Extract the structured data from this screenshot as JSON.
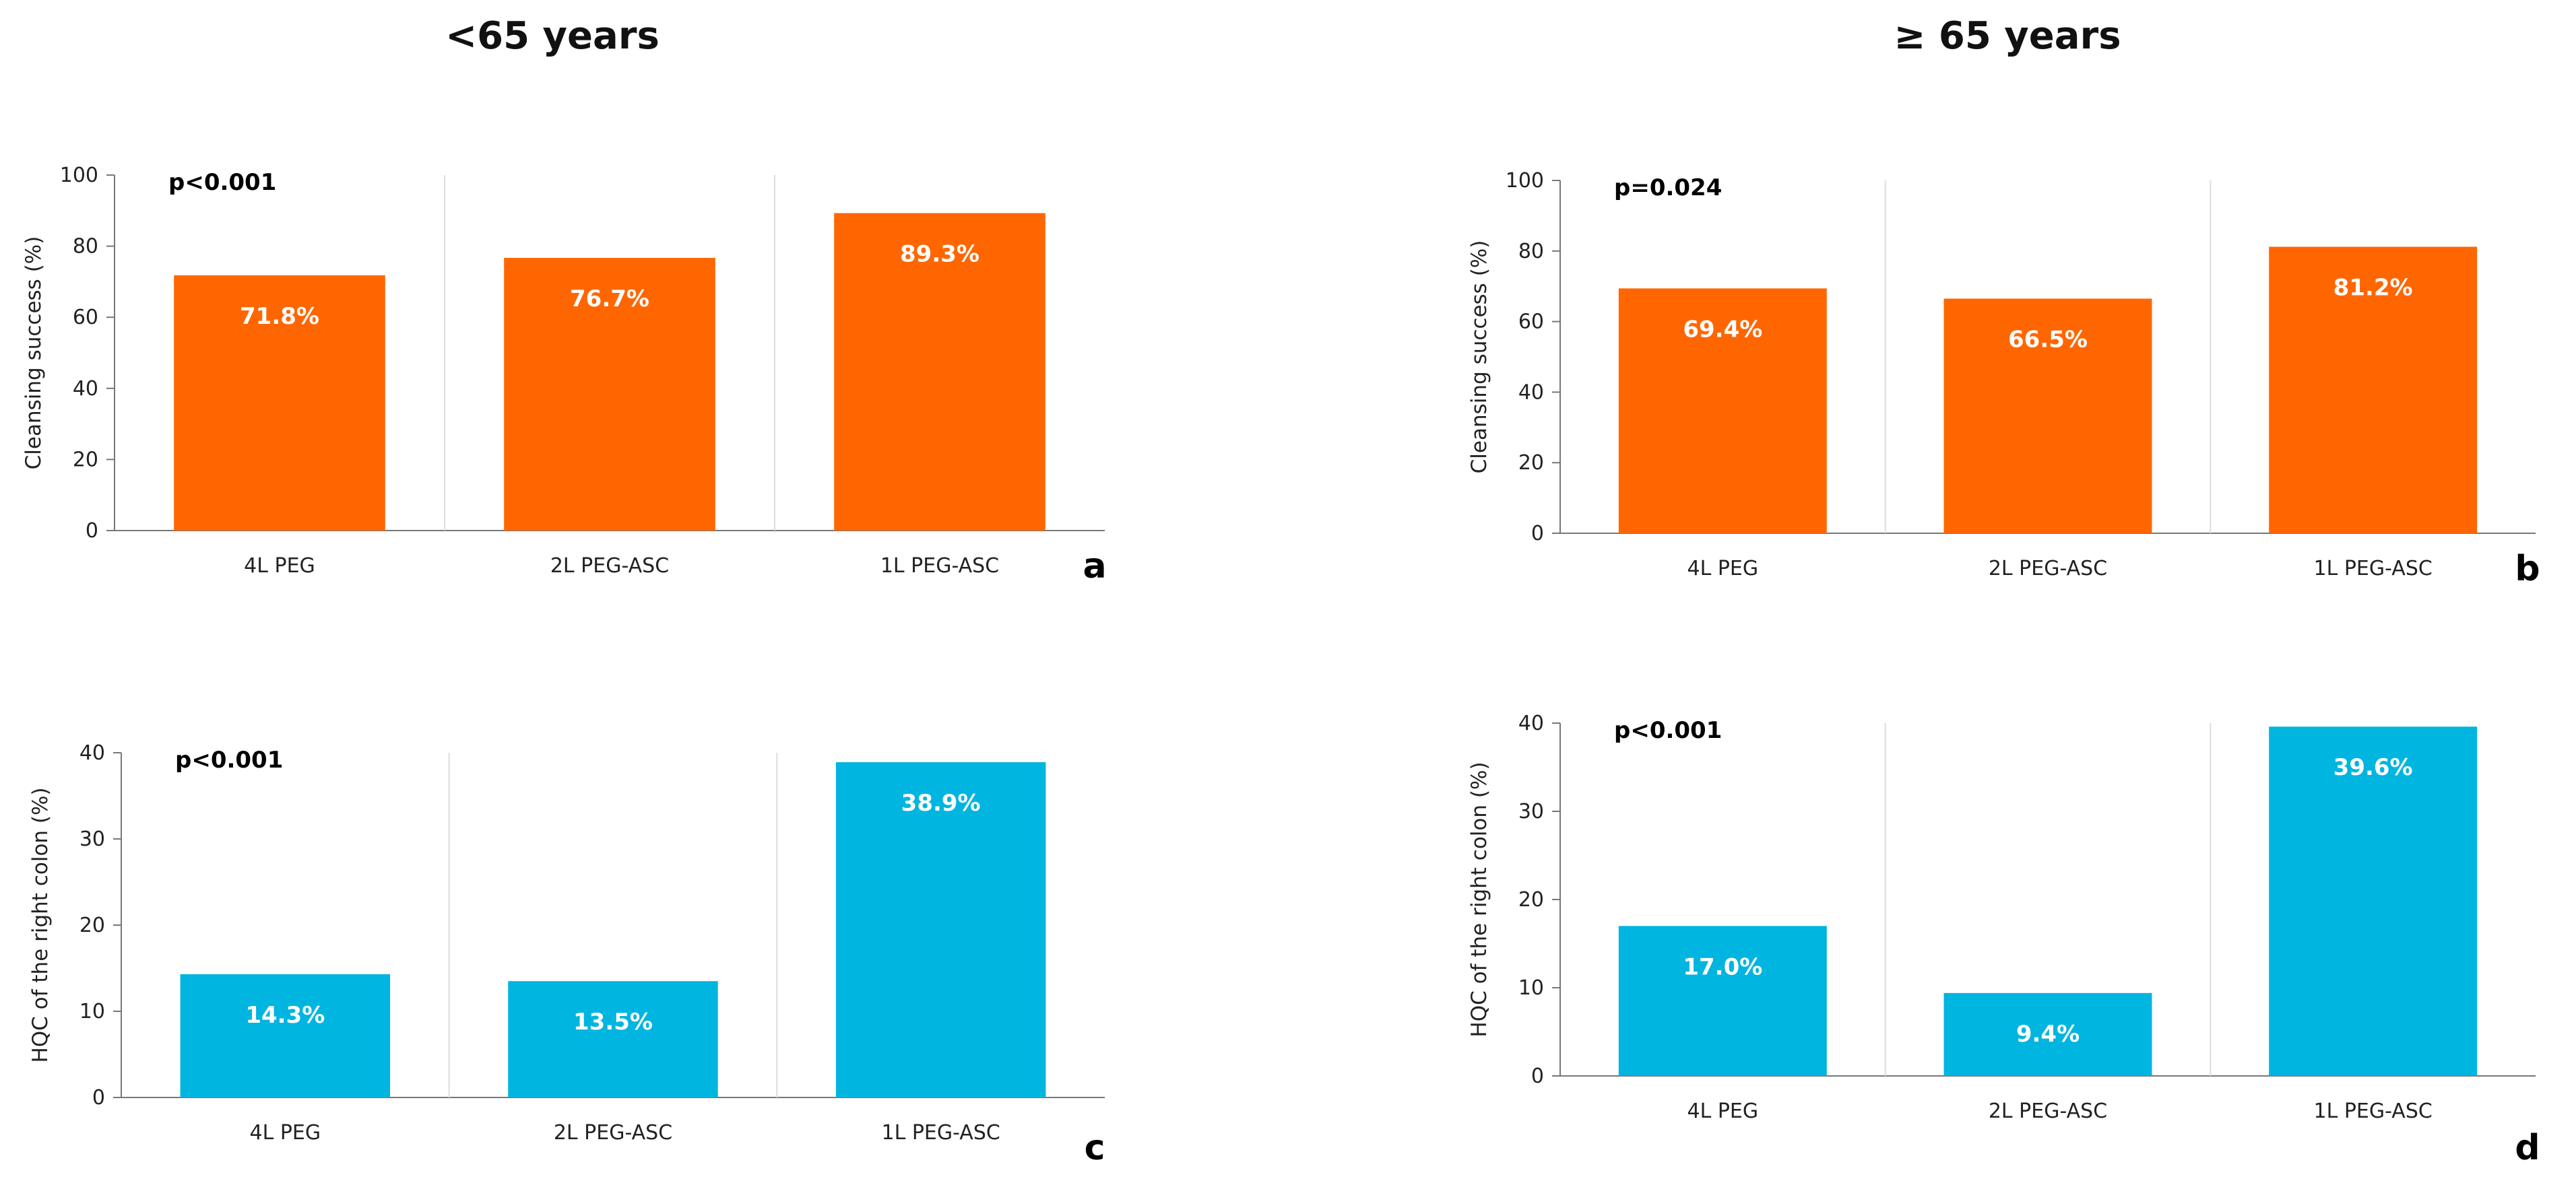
{
  "group_titles": {
    "left": "<65 years",
    "right": "≥ 65 years"
  },
  "colors": {
    "orange": "#ff6600",
    "blue": "#00b5e0"
  },
  "chart_data": [
    {
      "type": "bar",
      "panel": "a",
      "group": "<65 years",
      "categories": [
        "4L PEG",
        "2L PEG-ASC",
        "1L PEG-ASC"
      ],
      "values": [
        71.8,
        76.7,
        89.3
      ],
      "value_labels": [
        "71.8%",
        "76.7%",
        "89.3%"
      ],
      "ylabel": "Cleansing success (%)",
      "ylim": [
        0,
        100
      ],
      "yticks": [
        0,
        20,
        40,
        60,
        80,
        100
      ],
      "annotation": "p<0.001",
      "color": "#ff6600"
    },
    {
      "type": "bar",
      "panel": "b",
      "group": "≥ 65 years",
      "categories": [
        "4L PEG",
        "2L PEG-ASC",
        "1L PEG-ASC"
      ],
      "values": [
        69.4,
        66.5,
        81.2
      ],
      "value_labels": [
        "69.4%",
        "66.5%",
        "81.2%"
      ],
      "ylabel": "Cleansing success (%)",
      "ylim": [
        0,
        100
      ],
      "yticks": [
        0,
        20,
        40,
        60,
        80,
        100
      ],
      "annotation": "p=0.024",
      "color": "#ff6600"
    },
    {
      "type": "bar",
      "panel": "c",
      "group": "<65 years",
      "categories": [
        "4L PEG",
        "2L PEG-ASC",
        "1L PEG-ASC"
      ],
      "values": [
        14.3,
        13.5,
        38.9
      ],
      "value_labels": [
        "14.3%",
        "13.5%",
        "38.9%"
      ],
      "ylabel": "HQC of the right colon (%)",
      "ylim": [
        0,
        40
      ],
      "yticks": [
        0,
        10,
        20,
        30,
        40
      ],
      "annotation": "p<0.001",
      "color": "#00b5e0"
    },
    {
      "type": "bar",
      "panel": "d",
      "group": "≥ 65 years",
      "categories": [
        "4L PEG",
        "2L PEG-ASC",
        "1L PEG-ASC"
      ],
      "values": [
        17.0,
        9.4,
        39.6
      ],
      "value_labels": [
        "17.0%",
        "9.4%",
        "39.6%"
      ],
      "ylabel": "HQC of the right colon (%)",
      "ylim": [
        0,
        40
      ],
      "yticks": [
        0,
        10,
        20,
        30,
        40
      ],
      "annotation": "p<0.001",
      "color": "#00b5e0"
    }
  ]
}
